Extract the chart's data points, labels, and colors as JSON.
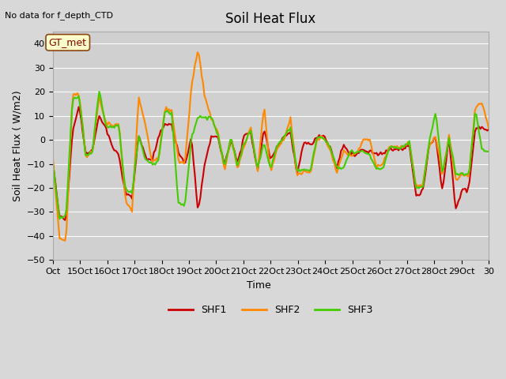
{
  "title": "Soil Heat Flux",
  "ylabel": "Soil Heat Flux ( W/m2)",
  "xlabel": "Time",
  "no_data_text": "No data for f_depth_CTD",
  "station_label": "GT_met",
  "ylim": [
    -50,
    45
  ],
  "yticks": [
    -50,
    -40,
    -30,
    -20,
    -10,
    0,
    10,
    20,
    30,
    40
  ],
  "fig_bg_color": "#d8d8d8",
  "plot_bg_color": "#d0d0d0",
  "grid_color": "#ffffff",
  "xtick_positions": [
    0,
    1,
    2,
    3,
    4,
    5,
    6,
    7,
    8,
    9,
    10,
    11,
    12,
    13,
    14,
    15,
    16
  ],
  "xtick_labels": [
    "Oct",
    "15Oct",
    "16Oct",
    "17Oct",
    "18Oct",
    "19Oct",
    "20Oct",
    "21Oct",
    "22Oct",
    "23Oct",
    "24Oct",
    "25Oct",
    "26Oct",
    "27Oct",
    "28Oct",
    "29Oct",
    "30"
  ],
  "shf1_color": "#cc0000",
  "shf2_color": "#ff8800",
  "shf3_color": "#44cc00",
  "line_width": 1.5,
  "legend_items": [
    "SHF1",
    "SHF2",
    "SHF3"
  ],
  "shf1": [
    -9,
    -32,
    -33,
    4,
    14,
    -6,
    -4,
    10,
    5,
    -3,
    -7,
    -22,
    -24,
    2,
    -7,
    -9,
    1,
    7,
    6,
    -5,
    -10,
    1,
    -30,
    -10,
    1,
    1,
    -10,
    0,
    -10,
    2,
    3,
    -13,
    5,
    -8,
    -3,
    1,
    3,
    -14,
    -1,
    -2,
    1,
    2,
    -3,
    -12,
    -2,
    -6,
    -6,
    -4,
    -5,
    -5,
    -6,
    -4,
    -4,
    -4,
    -2,
    -23,
    -22,
    -2,
    1,
    -21,
    1,
    -29,
    -21,
    -20,
    5,
    5,
    4
  ],
  "shf2": [
    -7,
    -41,
    -42,
    19,
    19,
    -7,
    -5,
    18,
    7,
    6,
    7,
    -25,
    -30,
    18,
    7,
    -9,
    -8,
    13,
    12,
    -8,
    -10,
    22,
    38,
    18,
    9,
    3,
    -13,
    1,
    -12,
    -2,
    5,
    -13,
    14,
    -14,
    -3,
    0,
    9,
    -15,
    -13,
    -14,
    0,
    1,
    -4,
    -14,
    -5,
    -6,
    -6,
    0,
    0,
    -11,
    -10,
    -3,
    -3,
    -3,
    -1,
    -19,
    -19,
    -2,
    2,
    -15,
    2,
    -16,
    -15,
    -15,
    14,
    15,
    5
  ],
  "shf3": [
    -10,
    -32,
    -32,
    17,
    18,
    -7,
    -5,
    21,
    6,
    5,
    6,
    -21,
    -22,
    2,
    -8,
    -10,
    -9,
    12,
    11,
    -26,
    -27,
    1,
    10,
    9,
    9,
    2,
    -11,
    1,
    -11,
    -1,
    4,
    -12,
    -1,
    -12,
    -2,
    1,
    5,
    -13,
    -12,
    -13,
    1,
    1,
    -3,
    -12,
    -12,
    -5,
    -5,
    -5,
    -6,
    -12,
    -12,
    -3,
    -3,
    -3,
    -1,
    -20,
    -20,
    -1,
    12,
    -14,
    1,
    -14,
    -14,
    -15,
    13,
    -4,
    -5
  ]
}
